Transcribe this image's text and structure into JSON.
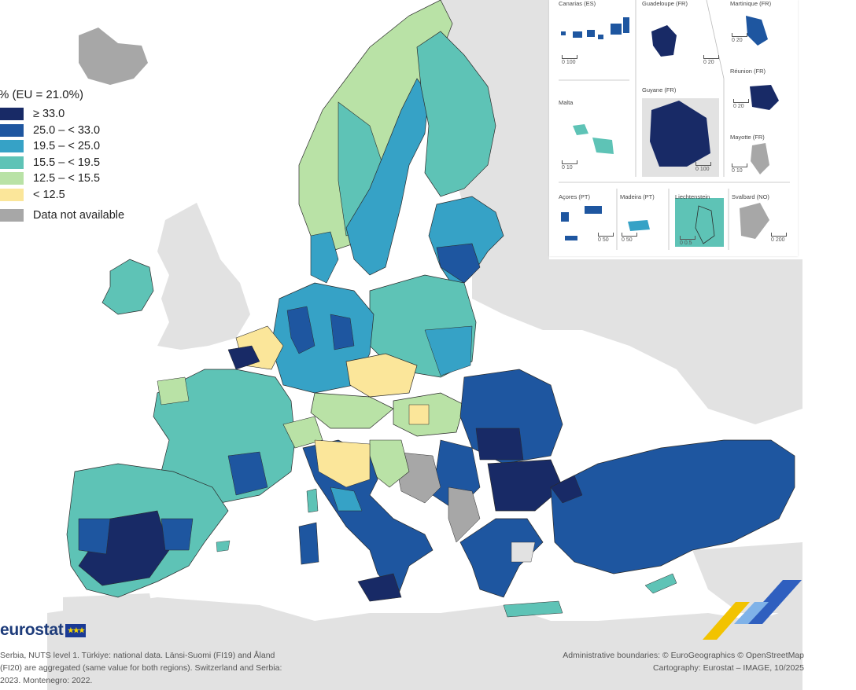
{
  "legend": {
    "title": "% (EU = 21.0%)",
    "classes": [
      {
        "label": "≥ 33.0",
        "color": "#182a66"
      },
      {
        "label": "25.0 – < 33.0",
        "color": "#1e56a0"
      },
      {
        "label": "19.5 – < 25.0",
        "color": "#36a2c6"
      },
      {
        "label": "15.5 – < 19.5",
        "color": "#5ec3b6"
      },
      {
        "label": "12.5 – < 15.5",
        "color": "#b9e2a6"
      },
      {
        "label": "< 12.5",
        "color": "#fbe69a"
      }
    ],
    "not_available": {
      "label": "Data not available",
      "color": "#a7a7a7"
    }
  },
  "colors": {
    "sea": "#ffffff",
    "non_eu_land": "#e2e2e2",
    "no_data": "#a7a7a7",
    "borders": "#2a2a2a"
  },
  "insets": [
    {
      "name": "Canarias (ES)",
      "scale": "0   100"
    },
    {
      "name": "Guadeloupe (FR)",
      "scale": "0   20"
    },
    {
      "name": "Martinique (FR)",
      "scale": "0   20"
    },
    {
      "name": "Réunion (FR)",
      "scale": "0   20"
    },
    {
      "name": "Malta",
      "scale": "0   10"
    },
    {
      "name": "Guyane (FR)",
      "scale": "0   100"
    },
    {
      "name": "Mayotte (FR)",
      "scale": "0   10"
    },
    {
      "name": "Açores (PT)",
      "scale": "0   50"
    },
    {
      "name": "Madeira (PT)",
      "scale": "0   50"
    },
    {
      "name": "Liechtenstein",
      "scale": "0   0.5"
    },
    {
      "name": "Svalbard (NO)",
      "scale": "0   200"
    }
  ],
  "brand": {
    "name": "eurostat",
    "flag_stars": "★★★"
  },
  "footnote": [
    "Serbia, NUTS level 1. Türkiye: national data. Länsi-Suomi (FI19) and Åland",
    "(FI20) are aggregated (same value for both regions). Switzerland and Serbia:",
    "2023. Montenegro: 2022."
  ],
  "credits": [
    "Administrative boundaries: © EuroGeographics © OpenStreetMap",
    "Cartography: Eurostat – IMAGE, 10/2025"
  ]
}
